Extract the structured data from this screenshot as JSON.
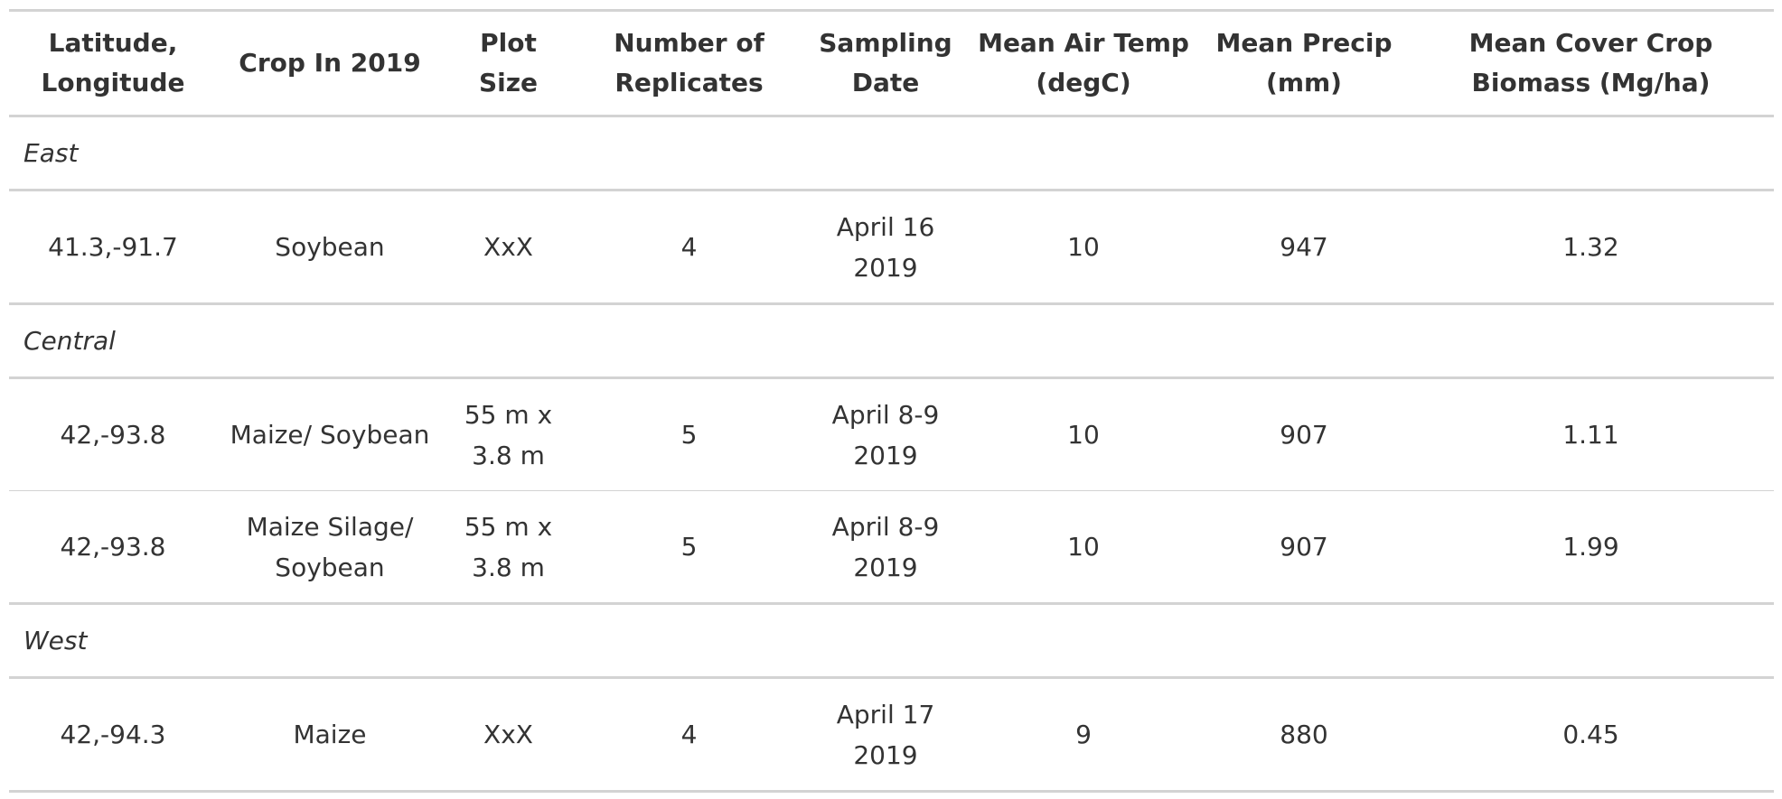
{
  "table": {
    "columns": [
      "Latitude, Longitude",
      "Crop In 2019",
      "Plot Size",
      "Number of Replicates",
      "Sampling Date",
      "Mean Air Temp (degC)",
      "Mean Precip (mm)",
      "Mean Cover Crop Biomass (Mg/ha)"
    ],
    "groups": [
      {
        "label": "East",
        "rows": [
          [
            "41.3,-91.7",
            "Soybean",
            "XxX",
            "4",
            "April 16 2019",
            "10",
            "947",
            "1.32"
          ]
        ]
      },
      {
        "label": "Central",
        "rows": [
          [
            "42,-93.8",
            "Maize/ Soybean",
            "55 m x 3.8 m",
            "5",
            "April 8-9 2019",
            "10",
            "907",
            "1.11"
          ],
          [
            "42,-93.8",
            "Maize Silage/ Soybean",
            "55 m x 3.8 m",
            "5",
            "April 8-9 2019",
            "10",
            "907",
            "1.99"
          ]
        ]
      },
      {
        "label": "West",
        "rows": [
          [
            "42,-94.3",
            "Maize",
            "XxX",
            "4",
            "April 17 2019",
            "9",
            "880",
            "0.45"
          ]
        ]
      }
    ]
  }
}
